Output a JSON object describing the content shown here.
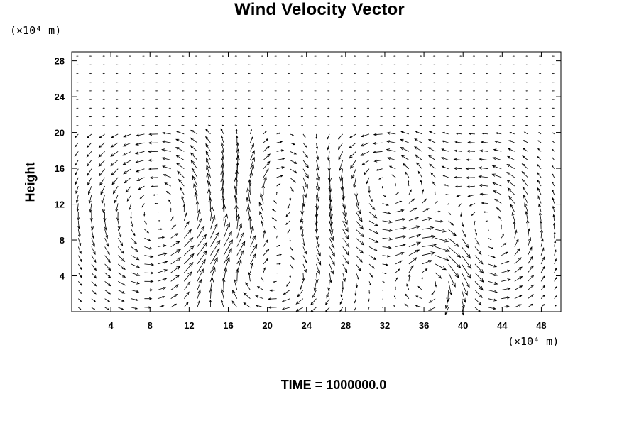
{
  "chart_data": {
    "type": "vector-field",
    "title": "Wind Velocity Vector",
    "ylabel": "Height",
    "y_unit": "(×10⁴ m)",
    "x_unit": "(×10⁴ m)",
    "footer": "TIME = 1000000.0",
    "xlim": [
      0,
      50
    ],
    "ylim": [
      0,
      29
    ],
    "x_ticks": [
      "4",
      "8",
      "12",
      "16",
      "20",
      "24",
      "28",
      "32",
      "36",
      "40",
      "44",
      "48"
    ],
    "y_ticks": [
      "4",
      "8",
      "12",
      "16",
      "20",
      "24",
      "28"
    ],
    "x_tick_values": [
      4,
      8,
      12,
      16,
      20,
      24,
      28,
      32,
      36,
      40,
      44,
      48
    ],
    "y_tick_values": [
      4,
      8,
      12,
      16,
      20,
      24,
      28
    ],
    "grid": false,
    "vector_color": "#000000",
    "layer_top": 20.3,
    "circulation_cells": [
      {
        "center": [
          9,
          11
        ],
        "radius_x": 8,
        "radius_y": 9,
        "rotation": "counterclockwise"
      },
      {
        "center": [
          20,
          4
        ],
        "radius_x": 7,
        "radius_y": 4,
        "rotation": "clockwise"
      },
      {
        "center": [
          21,
          13
        ],
        "radius_x": 5,
        "radius_y": 5,
        "rotation": "clockwise"
      },
      {
        "center": [
          32,
          14
        ],
        "radius_x": 6,
        "radius_y": 6,
        "rotation": "counterclockwise"
      },
      {
        "center": [
          43,
          9
        ],
        "radius_x": 5,
        "radius_y": 8,
        "rotation": "counterclockwise"
      },
      {
        "center": [
          37,
          4
        ],
        "radius_x": 3,
        "radius_y": 4,
        "rotation": "clockwise"
      }
    ]
  }
}
